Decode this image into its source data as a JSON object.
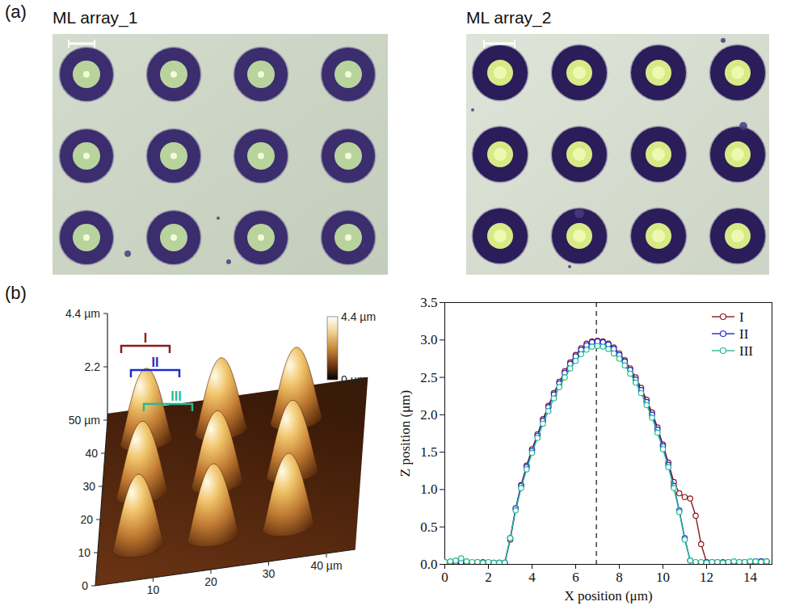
{
  "figure": {
    "label_a": "(a)",
    "label_b": "(b)"
  },
  "micrographs": [
    {
      "title": "ML array_1",
      "rows": 3,
      "columns": 4
    },
    {
      "title": "ML array_2",
      "rows": 3,
      "columns": 4
    }
  ],
  "afm_3d": {
    "x_ticks": [
      {
        "value": 10,
        "label": "10"
      },
      {
        "value": 20,
        "label": "20"
      },
      {
        "value": 30,
        "label": "30"
      },
      {
        "value": 40,
        "label": "40 µm"
      }
    ],
    "y_ticks": [
      {
        "value": 0,
        "label": "0"
      },
      {
        "value": 10,
        "label": "10"
      },
      {
        "value": 20,
        "label": "20"
      },
      {
        "value": 30,
        "label": "30"
      },
      {
        "value": 40,
        "label": "40"
      },
      {
        "value": 50,
        "label": "50 µm"
      }
    ],
    "z_ticks": [
      {
        "value": 2.2,
        "label": "2.2"
      },
      {
        "value": 4.4,
        "label": "4.4 µm"
      }
    ],
    "colorbar": {
      "range": [
        0,
        4.4
      ],
      "ticks": [
        {
          "value": 4.4,
          "label": "4.4 µm"
        },
        {
          "value": 0,
          "label": "0 µm"
        }
      ]
    },
    "profiles": [
      {
        "label": "I",
        "color": "#8b1a1a"
      },
      {
        "label": "II",
        "color": "#1f2ad0"
      },
      {
        "label": "III",
        "color": "#26b894"
      }
    ]
  },
  "chart_data": {
    "type": "line",
    "x_label": "X position (μm)",
    "y_label": "Z position (μm)",
    "xlim": [
      0,
      15
    ],
    "ylim": [
      0,
      3.5
    ],
    "xticks": [
      0,
      2,
      4,
      6,
      8,
      10,
      12,
      14
    ],
    "yticks": [
      {
        "value": 0,
        "label": "0.0"
      },
      0.5,
      {
        "value": 1,
        "label": "1.0"
      },
      1.5,
      {
        "value": 2,
        "label": "2.0"
      },
      2.5,
      {
        "value": 3,
        "label": "3.0"
      },
      3.5
    ],
    "grid": false,
    "legend": "top-right",
    "reference_line_x": 6.95,
    "x": [
      0,
      0.25,
      0.5,
      0.75,
      1,
      1.25,
      1.5,
      1.75,
      2,
      2.25,
      2.5,
      2.75,
      3,
      3.25,
      3.5,
      3.75,
      4,
      4.25,
      4.5,
      4.75,
      5,
      5.25,
      5.5,
      5.75,
      6,
      6.25,
      6.5,
      6.75,
      7,
      7.25,
      7.5,
      7.75,
      8,
      8.25,
      8.5,
      8.75,
      9,
      9.25,
      9.5,
      9.75,
      10,
      10.25,
      10.5,
      10.75,
      11,
      11.25,
      11.5,
      11.75,
      12,
      12.25,
      12.5,
      12.75,
      13,
      13.25,
      13.5,
      13.75,
      14,
      14.25,
      14.5,
      14.75
    ],
    "series": [
      {
        "name": "I",
        "color": "#8b1a1a",
        "marker": "open_circle",
        "line_style": "solid",
        "values": [
          0.02,
          0.03,
          0.02,
          0.02,
          0.03,
          0.02,
          0.02,
          0.03,
          0.02,
          0.02,
          0.02,
          0.02,
          0.33,
          0.74,
          1.06,
          1.32,
          1.54,
          1.74,
          1.94,
          2.12,
          2.29,
          2.44,
          2.58,
          2.7,
          2.8,
          2.89,
          2.95,
          2.98,
          2.99,
          2.98,
          2.95,
          2.9,
          2.82,
          2.73,
          2.62,
          2.5,
          2.36,
          2.2,
          2.03,
          1.83,
          1.6,
          1.36,
          1.1,
          0.95,
          0.9,
          0.88,
          0.65,
          0.27,
          0.03,
          0.02,
          0.03,
          0.03,
          0.02,
          0.03,
          0.03,
          0.02,
          0.03,
          0.04,
          0.04,
          0.03
        ]
      },
      {
        "name": "II",
        "color": "#1f2ad0",
        "marker": "open_circle",
        "line_style": "solid",
        "values": [
          0.03,
          0.02,
          0.03,
          0.03,
          0.02,
          0.02,
          0.03,
          0.02,
          0.02,
          0.01,
          0.02,
          0.02,
          0.35,
          0.75,
          1.05,
          1.3,
          1.52,
          1.72,
          1.92,
          2.1,
          2.27,
          2.42,
          2.56,
          2.68,
          2.78,
          2.87,
          2.93,
          2.97,
          2.98,
          2.97,
          2.94,
          2.88,
          2.8,
          2.71,
          2.6,
          2.47,
          2.33,
          2.17,
          2.0,
          1.8,
          1.58,
          1.33,
          1.05,
          0.72,
          0.35,
          0.05,
          0.02,
          0.02,
          0.03,
          0.03,
          0.02,
          0.02,
          0.03,
          0.03,
          0.02,
          0.03,
          0.03,
          0.04,
          0.04,
          0.04
        ]
      },
      {
        "name": "III",
        "color": "#26b894",
        "marker": "open_circle",
        "line_style": "solid",
        "values": [
          0.03,
          0.04,
          0.05,
          0.08,
          0.04,
          0.03,
          0.03,
          0.02,
          0.03,
          0.02,
          0.02,
          0.02,
          0.35,
          0.72,
          1.02,
          1.27,
          1.49,
          1.69,
          1.88,
          2.05,
          2.22,
          2.37,
          2.5,
          2.62,
          2.72,
          2.81,
          2.87,
          2.91,
          2.92,
          2.91,
          2.88,
          2.82,
          2.75,
          2.66,
          2.55,
          2.43,
          2.29,
          2.13,
          1.96,
          1.76,
          1.54,
          1.3,
          1.02,
          0.7,
          0.33,
          0.05,
          0.03,
          0.03,
          0.02,
          0.03,
          0.03,
          0.02,
          0.03,
          0.04,
          0.03,
          0.03,
          0.04,
          0.04,
          0.03,
          0.04
        ]
      }
    ]
  }
}
